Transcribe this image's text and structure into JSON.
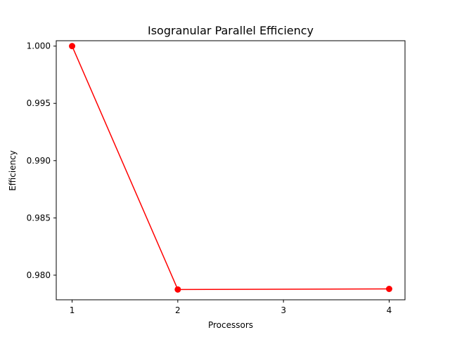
{
  "chart_data": {
    "type": "line",
    "title": "Isogranular Parallel Efficiency",
    "xlabel": "Processors",
    "ylabel": "Efficiency",
    "x": [
      1,
      2,
      4
    ],
    "x_tick_labels": [
      "1",
      "2",
      "3",
      "4"
    ],
    "xlim": [
      0.85,
      4.15
    ],
    "y_ticks": [
      0.98,
      0.985,
      0.99,
      0.995,
      1.0
    ],
    "y_tick_labels": [
      "0.980",
      "0.985",
      "0.990",
      "0.995",
      "1.000"
    ],
    "ylim": [
      0.97785,
      1.00047
    ],
    "grid": false,
    "series": [
      {
        "values": [
          1.0,
          0.97875,
          0.9788
        ],
        "color": "#ff0000",
        "marker": "circle"
      }
    ]
  }
}
